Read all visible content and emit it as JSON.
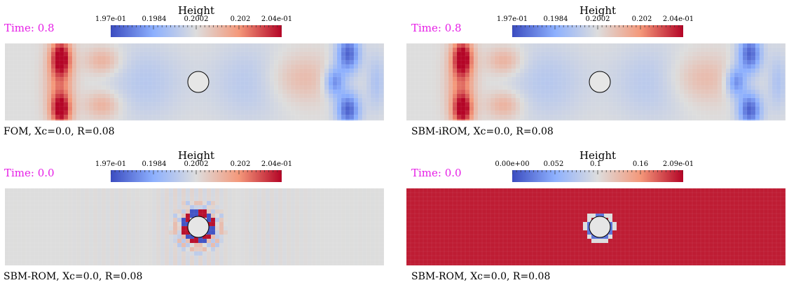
{
  "colorbar_title": "Height",
  "panels": [
    {
      "time": "Time: 0.8",
      "ticks": [
        "1.97e-01",
        "0.1984",
        "0.2002",
        "0.202",
        "2.04e-01"
      ],
      "caption": "FOM, Xc=0.0, R=0.08",
      "field": "wave_late"
    },
    {
      "time": "Time: 0.8",
      "ticks": [
        "1.97e-01",
        "0.1984",
        "0.2002",
        "0.202",
        "2.04e-01"
      ],
      "caption": "SBM-iROM, Xc=0.0, R=0.08",
      "field": "wave_late"
    },
    {
      "time": "Time: 0.0",
      "ticks": [
        "1.97e-01",
        "0.1984",
        "0.2002",
        "0.202",
        "2.04e-01"
      ],
      "caption": "SBM-ROM, Xc=0.0, R=0.08",
      "field": "ring_initial"
    },
    {
      "time": "Time: 0.0",
      "ticks": [
        "0.00e+00",
        "0.052",
        "0.1",
        "0.16",
        "2.09e-01"
      ],
      "caption": "SBM-ROM, Xc=0.0, R=0.08",
      "field": "saturated_red"
    }
  ],
  "colors": {
    "time_label": "#e61ee6",
    "cmap_low": "#3b4cc0",
    "cmap_mid": "#dddddd",
    "cmap_high": "#b40426",
    "obstacle_fill": "#e6e6e6"
  }
}
